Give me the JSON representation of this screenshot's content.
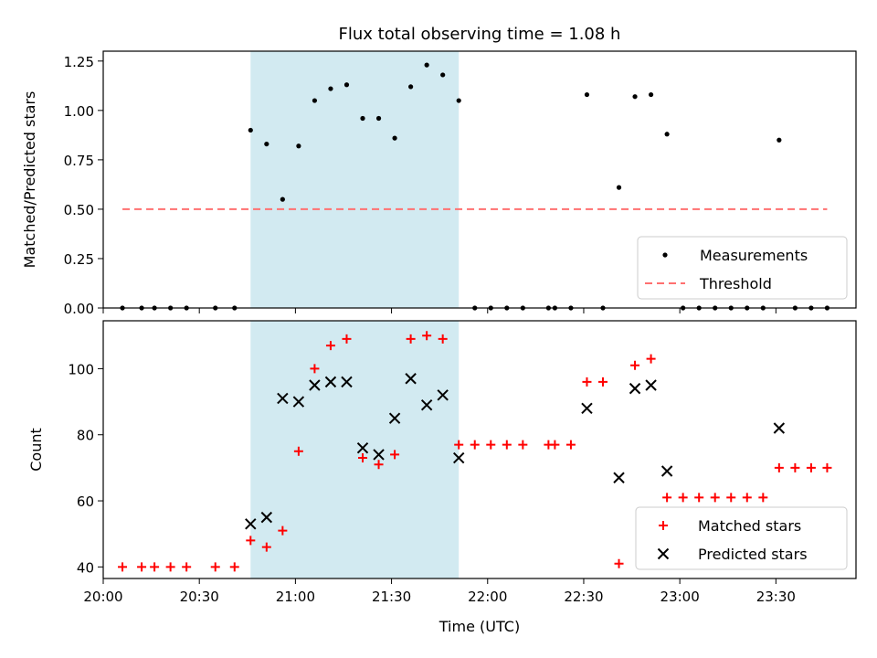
{
  "figure": {
    "title": "Flux total observing time = 1.08 h",
    "shaded_color": "#add8e6",
    "background": "#ffffff"
  },
  "chart_data": [
    {
      "type": "scatter",
      "panel": "top",
      "title": "Flux total observing time = 1.08 h",
      "xlabel": "",
      "ylabel": "Matched/Predicted stars",
      "xlim": [
        "20:00",
        "23:55"
      ],
      "ylim": [
        0,
        1.3
      ],
      "yticks": [
        0.0,
        0.25,
        0.5,
        0.75,
        1.0,
        1.25
      ],
      "ytick_labels": [
        "0.00",
        "0.25",
        "0.50",
        "0.75",
        "1.00",
        "1.25"
      ],
      "shaded_interval": [
        "20:46",
        "21:51"
      ],
      "legend_position": "lower right",
      "series": [
        {
          "name": "Measurements",
          "marker": "dot",
          "color": "#000000",
          "points": [
            [
              "20:06",
              0.0
            ],
            [
              "20:12",
              0.0
            ],
            [
              "20:16",
              0.0
            ],
            [
              "20:21",
              0.0
            ],
            [
              "20:26",
              0.0
            ],
            [
              "20:35",
              0.0
            ],
            [
              "20:41",
              0.0
            ],
            [
              "20:46",
              0.9
            ],
            [
              "20:51",
              0.83
            ],
            [
              "20:56",
              0.55
            ],
            [
              "21:01",
              0.82
            ],
            [
              "21:06",
              1.05
            ],
            [
              "21:11",
              1.11
            ],
            [
              "21:16",
              1.13
            ],
            [
              "21:21",
              0.96
            ],
            [
              "21:26",
              0.96
            ],
            [
              "21:31",
              0.86
            ],
            [
              "21:36",
              1.12
            ],
            [
              "21:41",
              1.23
            ],
            [
              "21:46",
              1.18
            ],
            [
              "21:51",
              1.05
            ],
            [
              "21:56",
              0.0
            ],
            [
              "22:01",
              0.0
            ],
            [
              "22:06",
              0.0
            ],
            [
              "22:11",
              0.0
            ],
            [
              "22:19",
              0.0
            ],
            [
              "22:21",
              0.0
            ],
            [
              "22:26",
              0.0
            ],
            [
              "22:31",
              1.08
            ],
            [
              "22:36",
              0.0
            ],
            [
              "22:41",
              0.61
            ],
            [
              "22:46",
              1.07
            ],
            [
              "22:51",
              1.08
            ],
            [
              "22:56",
              0.88
            ],
            [
              "23:01",
              0.0
            ],
            [
              "23:06",
              0.0
            ],
            [
              "23:11",
              0.0
            ],
            [
              "23:16",
              0.0
            ],
            [
              "23:21",
              0.0
            ],
            [
              "23:26",
              0.0
            ],
            [
              "23:31",
              0.85
            ],
            [
              "23:36",
              0.0
            ],
            [
              "23:41",
              0.0
            ],
            [
              "23:46",
              0.0
            ]
          ]
        },
        {
          "name": "Threshold",
          "type": "line",
          "style": "dashed",
          "color": "#ff7070",
          "points": [
            [
              "20:06",
              0.5
            ],
            [
              "23:46",
              0.5
            ]
          ]
        }
      ]
    },
    {
      "type": "scatter",
      "panel": "bottom",
      "title": "",
      "xlabel": "Time (UTC)",
      "ylabel": "Count",
      "xlim": [
        "20:00",
        "23:55"
      ],
      "ylim": [
        36.5,
        114.5
      ],
      "yticks": [
        40,
        60,
        80,
        100
      ],
      "xticks": [
        "20:00",
        "20:30",
        "21:00",
        "21:30",
        "22:00",
        "22:30",
        "23:00",
        "23:30"
      ],
      "shaded_interval": [
        "20:46",
        "21:51"
      ],
      "legend_position": "lower right",
      "series": [
        {
          "name": "Matched stars",
          "marker": "plus",
          "color": "#ff0000",
          "points": [
            [
              "20:06",
              40
            ],
            [
              "20:12",
              40
            ],
            [
              "20:16",
              40
            ],
            [
              "20:21",
              40
            ],
            [
              "20:26",
              40
            ],
            [
              "20:35",
              40
            ],
            [
              "20:41",
              40
            ],
            [
              "20:46",
              48
            ],
            [
              "20:51",
              46
            ],
            [
              "20:56",
              51
            ],
            [
              "21:01",
              75
            ],
            [
              "21:06",
              100
            ],
            [
              "21:11",
              107
            ],
            [
              "21:16",
              109
            ],
            [
              "21:21",
              73
            ],
            [
              "21:26",
              71
            ],
            [
              "21:31",
              74
            ],
            [
              "21:36",
              109
            ],
            [
              "21:41",
              110
            ],
            [
              "21:46",
              109
            ],
            [
              "21:51",
              77
            ],
            [
              "21:56",
              77
            ],
            [
              "22:01",
              77
            ],
            [
              "22:06",
              77
            ],
            [
              "22:11",
              77
            ],
            [
              "22:19",
              77
            ],
            [
              "22:21",
              77
            ],
            [
              "22:26",
              77
            ],
            [
              "22:31",
              96
            ],
            [
              "22:36",
              96
            ],
            [
              "22:41",
              41
            ],
            [
              "22:46",
              101
            ],
            [
              "22:51",
              103
            ],
            [
              "22:56",
              61
            ],
            [
              "23:01",
              61
            ],
            [
              "23:06",
              61
            ],
            [
              "23:11",
              61
            ],
            [
              "23:16",
              61
            ],
            [
              "23:21",
              61
            ],
            [
              "23:26",
              61
            ],
            [
              "23:31",
              70
            ],
            [
              "23:36",
              70
            ],
            [
              "23:41",
              70
            ],
            [
              "23:46",
              70
            ]
          ]
        },
        {
          "name": "Predicted stars",
          "marker": "x",
          "color": "#000000",
          "points": [
            [
              "20:46",
              53
            ],
            [
              "20:51",
              55
            ],
            [
              "20:56",
              91
            ],
            [
              "21:01",
              90
            ],
            [
              "21:06",
              95
            ],
            [
              "21:11",
              96
            ],
            [
              "21:16",
              96
            ],
            [
              "21:21",
              76
            ],
            [
              "21:26",
              74
            ],
            [
              "21:31",
              85
            ],
            [
              "21:36",
              97
            ],
            [
              "21:41",
              89
            ],
            [
              "21:46",
              92
            ],
            [
              "21:51",
              73
            ],
            [
              "22:31",
              88
            ],
            [
              "22:41",
              67
            ],
            [
              "22:46",
              94
            ],
            [
              "22:51",
              95
            ],
            [
              "22:56",
              69
            ],
            [
              "23:31",
              82
            ]
          ]
        }
      ]
    }
  ]
}
